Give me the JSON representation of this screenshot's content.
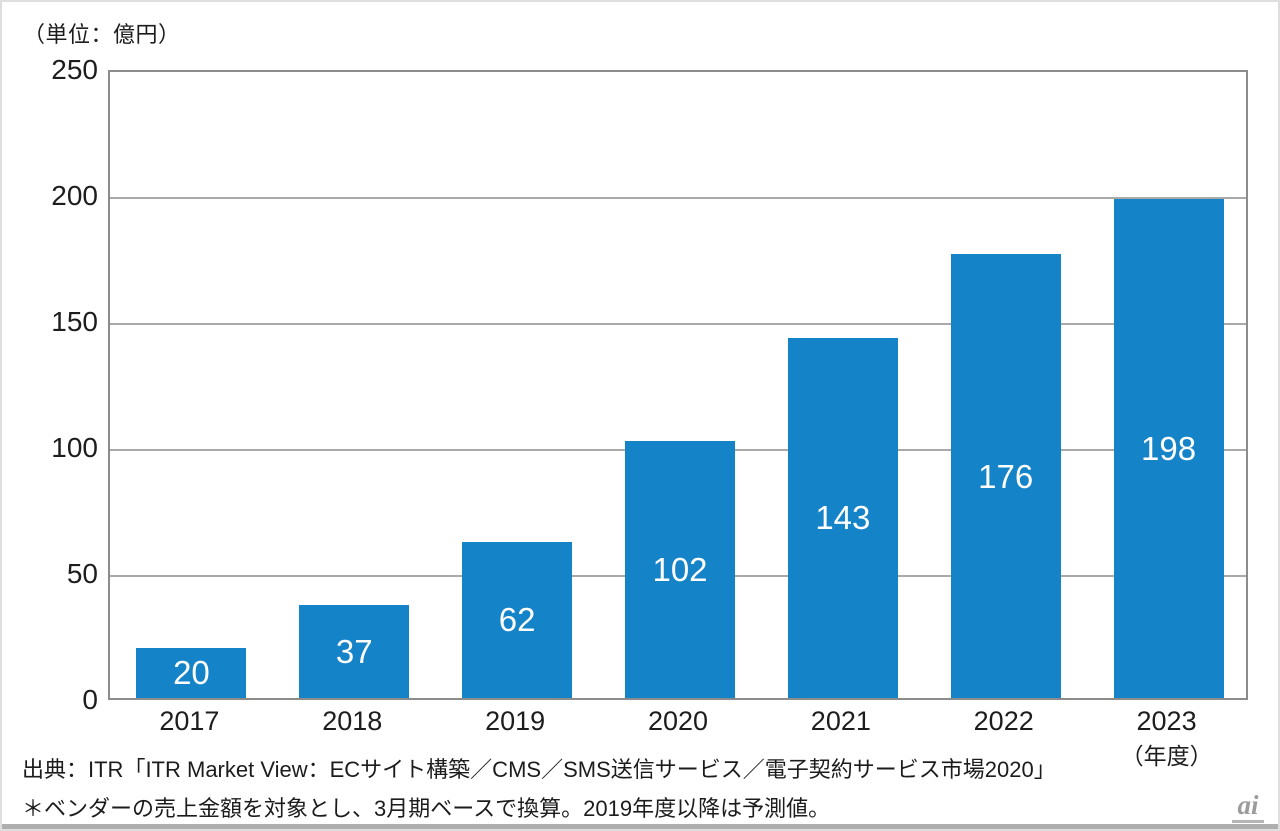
{
  "chart_data": {
    "type": "bar",
    "title": "",
    "unit_label": "（単位：億円）",
    "categories": [
      "2017",
      "2018",
      "2019",
      "2020",
      "2021",
      "2022",
      "2023"
    ],
    "values": [
      20,
      37,
      62,
      102,
      143,
      176,
      198
    ],
    "x_axis_suffix": "（年度）",
    "xlabel": "",
    "ylabel": "",
    "y_ticks": [
      0,
      50,
      100,
      150,
      200,
      250
    ],
    "ylim": [
      0,
      250
    ],
    "grid": true,
    "legend_position": "none",
    "bar_color": "#1583c8",
    "value_label_color": "#ffffff",
    "gridline_color": "#a9a9a9",
    "axis_border_color": "#8c8c8c"
  },
  "footer": {
    "source_line": "出典：ITR「ITR Market View：ECサイト構築／CMS／SMS送信サービス／電子契約サービス市場2020」",
    "note_line": "＊ベンダーの売上金額を対象とし、3月期ベースで換算。2019年度以降は予測値。",
    "watermark": "ai"
  }
}
